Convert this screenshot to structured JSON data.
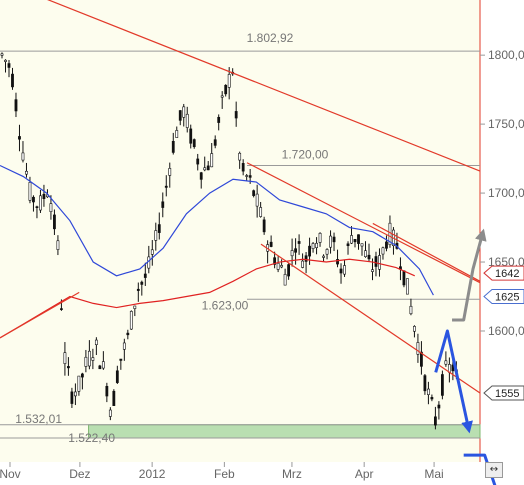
{
  "chart_data": {
    "type": "candlestick",
    "ylim": [
      1505,
      1840
    ],
    "y_ticks": [
      {
        "value": 1600,
        "label": "1600,00"
      },
      {
        "value": 1650,
        "label": "1650,00"
      },
      {
        "value": 1700,
        "label": "1700,00"
      },
      {
        "value": 1750,
        "label": "1750,00"
      },
      {
        "value": 1800,
        "label": "1800,00"
      }
    ],
    "x_labels": [
      "Nov",
      "Dez",
      "2012",
      "Feb",
      "Mrz",
      "Apr",
      "Mai"
    ],
    "x_label_days": [
      0,
      30,
      61,
      92,
      121,
      152,
      182
    ],
    "x_end_day": 206,
    "levels": [
      {
        "label": "1.802,92",
        "value": 1802.92
      },
      {
        "label": "1.720,00",
        "value": 1720.0
      },
      {
        "label": "1.623,00",
        "value": 1623.0
      },
      {
        "label": "1.532,01",
        "value": 1532.01
      },
      {
        "label": "1.522,40",
        "value": 1522.4
      }
    ],
    "support_zone": [
      1522.4,
      1532.01
    ],
    "badges": [
      {
        "label": "1642",
        "value": 1642,
        "color": "#d43a3a"
      },
      {
        "label": "1625",
        "value": 1625,
        "color": "#4a6fd0"
      },
      {
        "label": "1555",
        "value": 1555,
        "color": "#555555"
      }
    ],
    "series": [
      {
        "values": [
          [
            0,
            1800
          ],
          [
            4,
            1790
          ],
          [
            8,
            1740
          ],
          [
            12,
            1700
          ],
          [
            16,
            1690
          ],
          [
            20,
            1705
          ],
          [
            24,
            1660
          ],
          [
            27,
            1580
          ],
          [
            30,
            1555
          ],
          [
            33,
            1560
          ],
          [
            36,
            1575
          ],
          [
            40,
            1590
          ],
          [
            44,
            1570
          ],
          [
            47,
            1540
          ],
          [
            50,
            1575
          ],
          [
            54,
            1595
          ],
          [
            58,
            1630
          ],
          [
            62,
            1640
          ],
          [
            66,
            1665
          ],
          [
            70,
            1700
          ],
          [
            74,
            1740
          ],
          [
            78,
            1760
          ],
          [
            82,
            1735
          ],
          [
            86,
            1715
          ],
          [
            90,
            1725
          ],
          [
            94,
            1760
          ],
          [
            97,
            1780
          ],
          [
            99,
            1790
          ],
          [
            101,
            1740
          ],
          [
            103,
            1715
          ],
          [
            106,
            1710
          ],
          [
            110,
            1690
          ],
          [
            114,
            1665
          ],
          [
            118,
            1650
          ],
          [
            122,
            1640
          ],
          [
            126,
            1665
          ],
          [
            130,
            1650
          ],
          [
            134,
            1670
          ],
          [
            138,
            1660
          ],
          [
            142,
            1665
          ],
          [
            146,
            1640
          ],
          [
            150,
            1670
          ],
          [
            154,
            1665
          ],
          [
            158,
            1645
          ],
          [
            162,
            1650
          ],
          [
            166,
            1672
          ],
          [
            170,
            1660
          ],
          [
            174,
            1630
          ],
          [
            178,
            1595
          ],
          [
            182,
            1560
          ],
          [
            186,
            1535
          ],
          [
            190,
            1570
          ],
          [
            194,
            1575
          ],
          [
            196,
            1558
          ]
        ]
      }
    ],
    "ma_blue": [
      [
        0,
        1720
      ],
      [
        10,
        1712
      ],
      [
        20,
        1700
      ],
      [
        30,
        1680
      ],
      [
        40,
        1650
      ],
      [
        50,
        1640
      ],
      [
        60,
        1645
      ],
      [
        70,
        1660
      ],
      [
        80,
        1685
      ],
      [
        90,
        1700
      ],
      [
        100,
        1710
      ],
      [
        110,
        1708
      ],
      [
        120,
        1695
      ],
      [
        130,
        1690
      ],
      [
        140,
        1685
      ],
      [
        150,
        1675
      ],
      [
        160,
        1672
      ],
      [
        170,
        1662
      ],
      [
        180,
        1645
      ],
      [
        186,
        1626
      ]
    ],
    "ma_red": [
      [
        0,
        1595
      ],
      [
        10,
        1605
      ],
      [
        20,
        1615
      ],
      [
        30,
        1625
      ],
      [
        40,
        1620
      ],
      [
        50,
        1617
      ],
      [
        60,
        1620
      ],
      [
        70,
        1622
      ],
      [
        80,
        1625
      ],
      [
        90,
        1628
      ],
      [
        100,
        1636
      ],
      [
        110,
        1645
      ],
      [
        120,
        1650
      ],
      [
        130,
        1652
      ],
      [
        140,
        1650
      ],
      [
        150,
        1652
      ],
      [
        160,
        1650
      ],
      [
        170,
        1646
      ],
      [
        178,
        1640
      ]
    ],
    "trendlines": [
      {
        "from": [
          0,
          1854
        ],
        "to": [
          206,
          1716
        ],
        "color": "#e23a2a"
      },
      {
        "from": [
          106,
          1722
        ],
        "to": [
          206,
          1635
        ],
        "color": "#e23a2a"
      },
      {
        "from": [
          112,
          1663
        ],
        "to": [
          206,
          1555
        ],
        "color": "#e23a2a"
      },
      {
        "from": [
          0,
          1595
        ],
        "to": [
          34,
          1628
        ],
        "color": "#e23a2a"
      },
      {
        "from": [
          160,
          1678
        ],
        "to": [
          206,
          1636
        ],
        "color": "#e23a2a"
      }
    ],
    "projections": [
      {
        "points": [
          [
            187,
            1570
          ],
          [
            192,
            1600
          ],
          [
            201,
            1530
          ]
        ],
        "color": "#2a55e0"
      },
      {
        "points": [
          [
            199,
            1510
          ],
          [
            208,
            1510
          ],
          [
            214,
            1480
          ]
        ],
        "color": "#2a55e0"
      },
      {
        "points": [
          [
            194,
            1608
          ],
          [
            199,
            1608
          ],
          [
            203,
            1645
          ],
          [
            207,
            1670
          ]
        ],
        "color": "#8c8c8c"
      }
    ]
  },
  "ui": {
    "scroll_glyph": "↔"
  }
}
